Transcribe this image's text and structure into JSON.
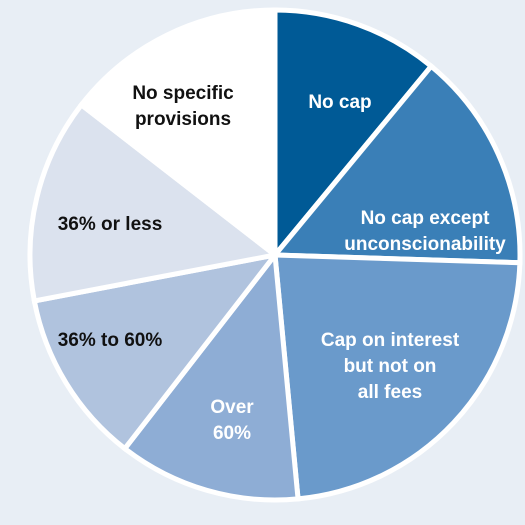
{
  "chart_data": {
    "type": "pie",
    "categories": [
      [
        "No cap"
      ],
      [
        "No cap except",
        "unconscionability"
      ],
      [
        "Cap on interest",
        "but not on",
        "all fees"
      ],
      [
        "Over",
        "60%"
      ],
      [
        "36% to 60%"
      ],
      [
        "36% or less"
      ],
      [
        "No specific",
        "provisions"
      ]
    ],
    "values": [
      11,
      14.5,
      23,
      12,
      11.5,
      13.5,
      14.5
    ],
    "colors": [
      "#005a96",
      "#3a7fb7",
      "#6a9acb",
      "#8eadd5",
      "#b0c3de",
      "#dbe2ee",
      "#ffffff"
    ]
  }
}
